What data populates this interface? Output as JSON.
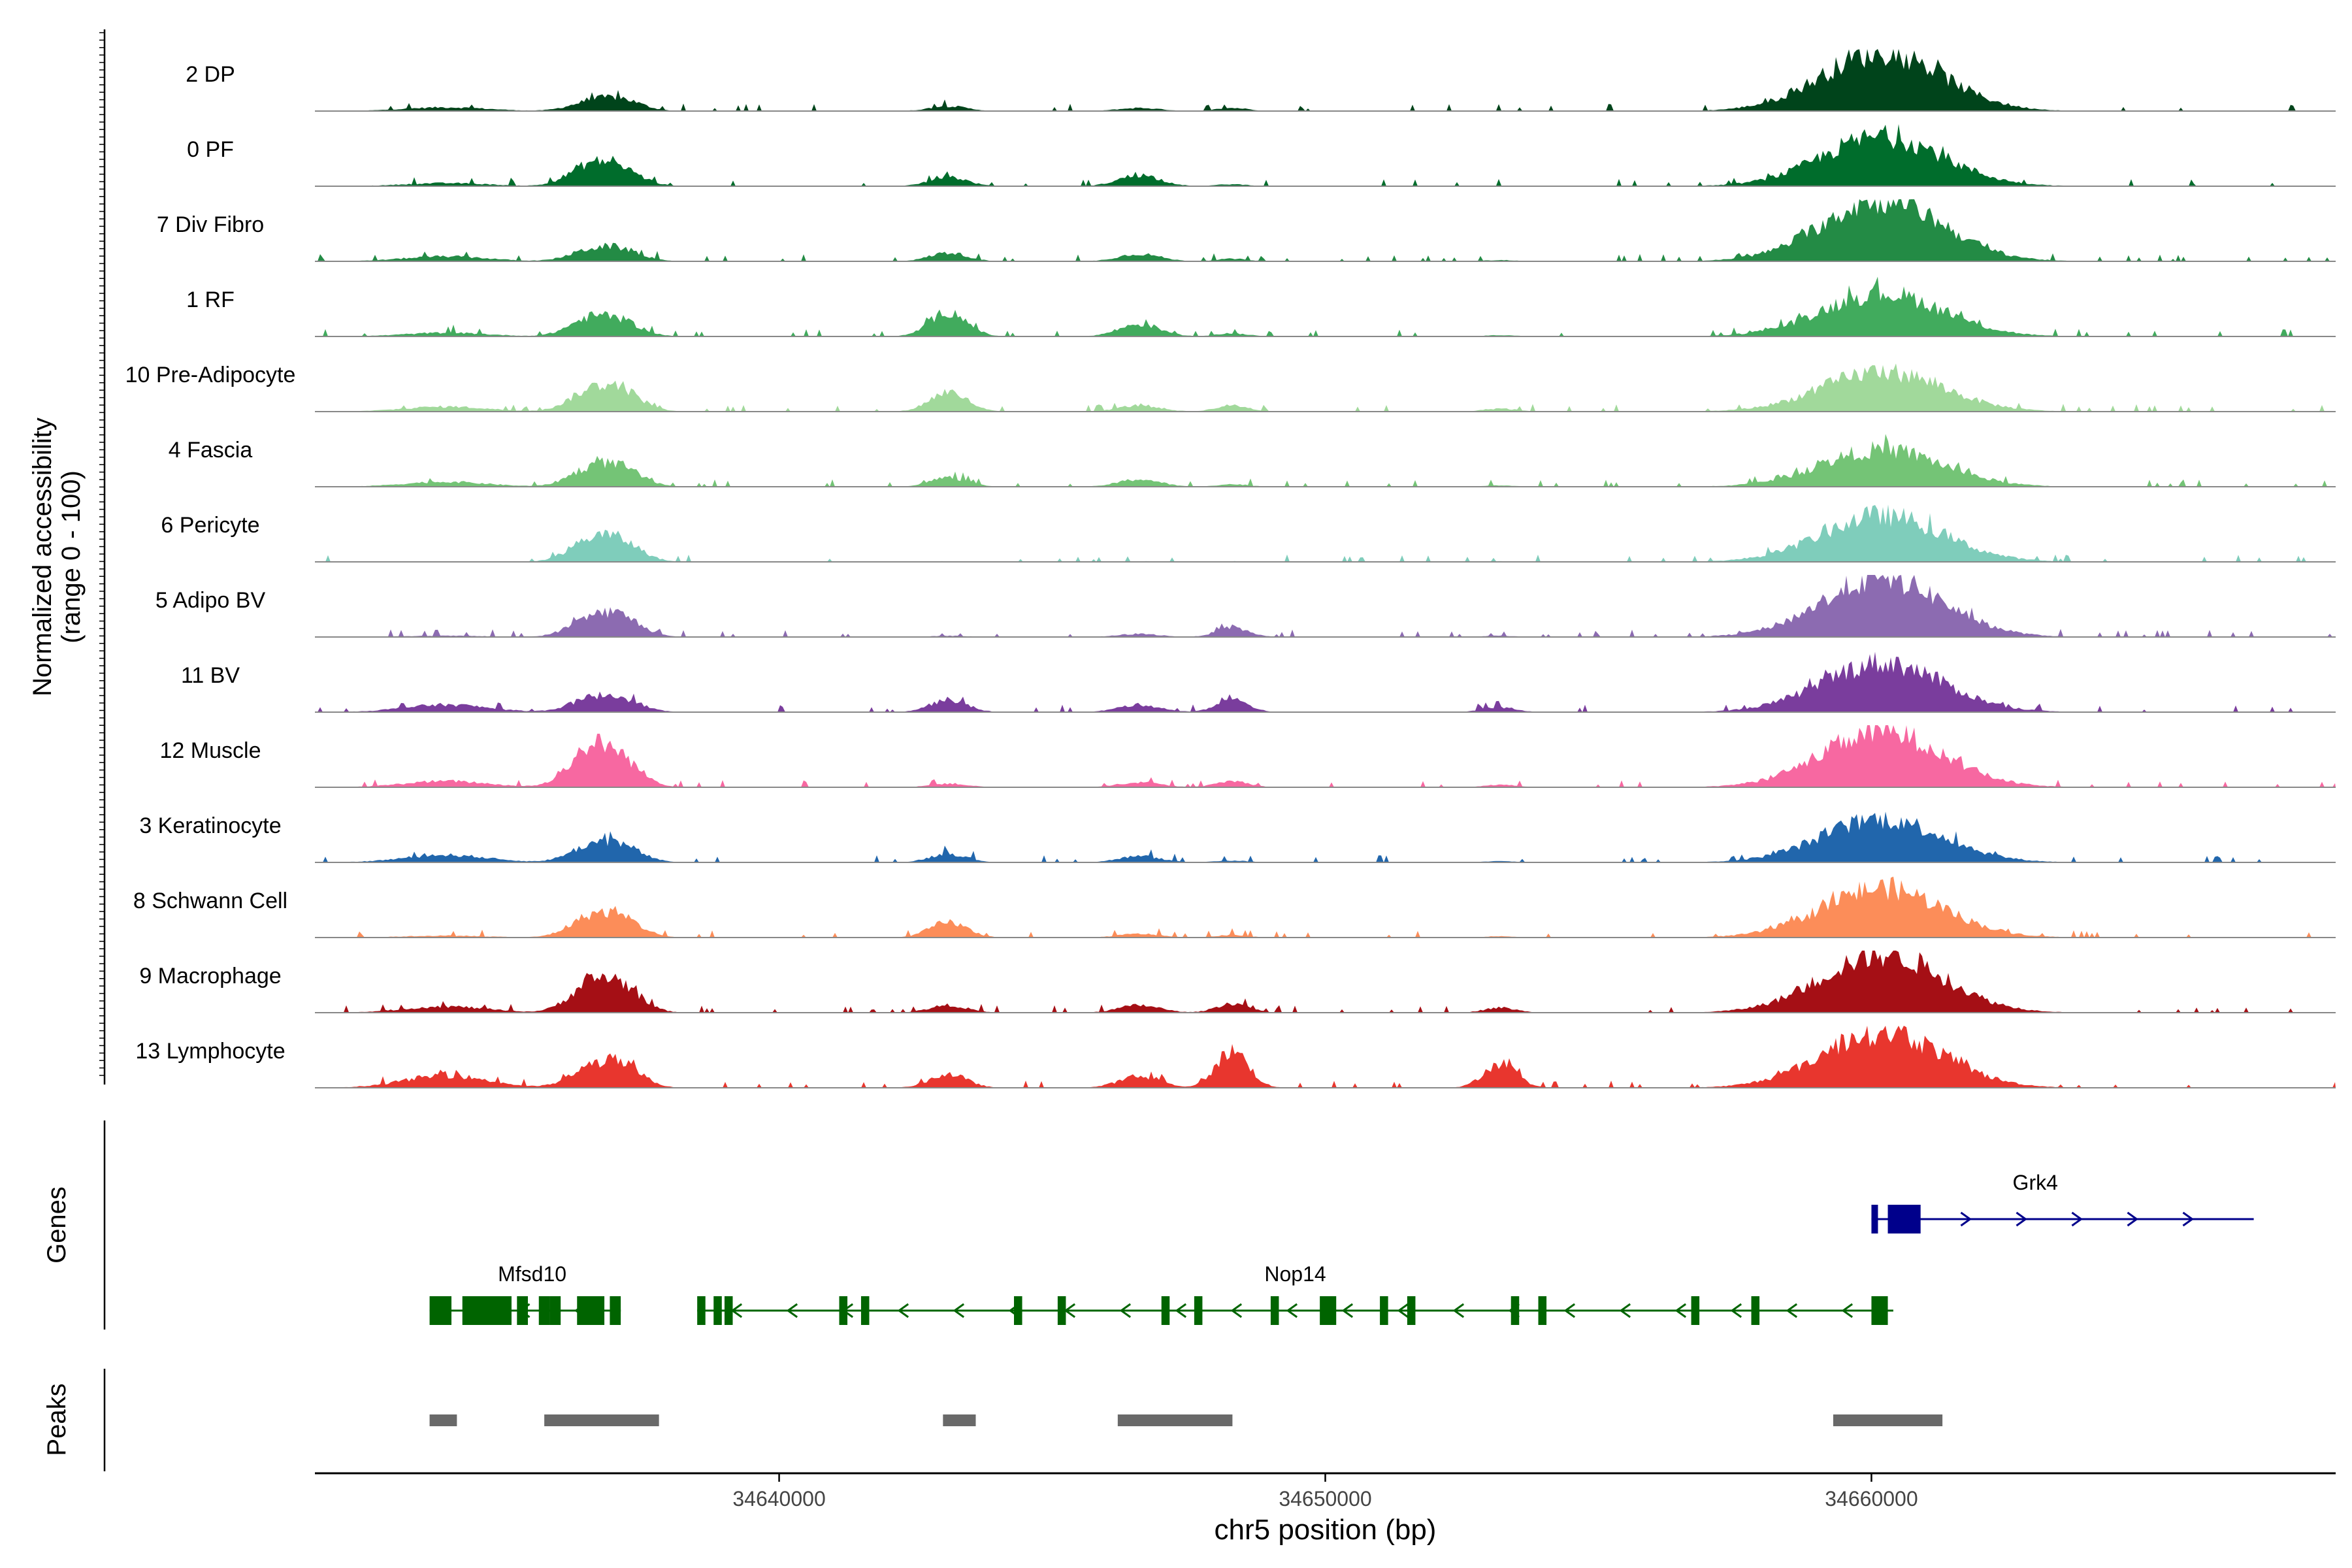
{
  "chart_data": {
    "type": "area",
    "description_tracks": "coverage tracks, normalized accessibility",
    "ylabel": [
      "Normalized accessibility",
      "(range 0 - 100)"
    ],
    "xlabel": "chr5 position (bp)",
    "xlim": [
      34631500,
      34668500
    ],
    "x_ticks": [
      34640000,
      34650000,
      34660000
    ],
    "x_tick_labels": [
      "34640000",
      "34650000",
      "34660000"
    ],
    "grid": false,
    "track_ylim": [
      0,
      100
    ],
    "peak_centers": [
      34633900,
      34636500,
      34637100,
      34643100,
      34646600,
      34648300,
      34653200,
      34660200
    ],
    "series": [
      {
        "name": "2 DP",
        "color": "#00441b",
        "values": [
          6,
          12,
          18,
          8,
          5,
          5,
          1,
          95
        ]
      },
      {
        "name": "0 PF",
        "color": "#006d2c",
        "values": [
          5,
          30,
          25,
          15,
          18,
          3,
          1,
          80
        ]
      },
      {
        "name": "7 Div Fibro",
        "color": "#238b45",
        "values": [
          8,
          15,
          18,
          14,
          12,
          4,
          2,
          100
        ]
      },
      {
        "name": "1 RF",
        "color": "#41ab5d",
        "values": [
          6,
          25,
          22,
          40,
          20,
          5,
          2,
          70
        ]
      },
      {
        "name": "10 Pre-Adipocyte",
        "color": "#a1d99b",
        "values": [
          8,
          28,
          32,
          32,
          10,
          10,
          5,
          65
        ]
      },
      {
        "name": "4 Fascia",
        "color": "#74c476",
        "values": [
          8,
          25,
          28,
          15,
          12,
          4,
          2,
          60
        ]
      },
      {
        "name": "6 Pericyte",
        "color": "#7fcdbb",
        "values": [
          1,
          30,
          30,
          1,
          1,
          1,
          1,
          75
        ]
      },
      {
        "name": "5 Adipo BV",
        "color": "#8c6bb1",
        "values": [
          2,
          25,
          30,
          2,
          5,
          15,
          2,
          95
        ]
      },
      {
        "name": "11 BV",
        "color": "#7a3d9d",
        "values": [
          12,
          18,
          20,
          20,
          12,
          20,
          8,
          80
        ]
      },
      {
        "name": "12 Muscle",
        "color": "#f768a1",
        "values": [
          10,
          55,
          40,
          6,
          8,
          10,
          4,
          90
        ]
      },
      {
        "name": "3 Keratinocyte",
        "color": "#2166ac",
        "values": [
          12,
          22,
          25,
          14,
          10,
          3,
          2,
          70
        ]
      },
      {
        "name": "8 Schwann Cell",
        "color": "#fc8d59",
        "values": [
          3,
          28,
          28,
          25,
          6,
          4,
          2,
          80
        ]
      },
      {
        "name": "9 Macrophage",
        "color": "#a50f15",
        "values": [
          10,
          38,
          40,
          12,
          12,
          15,
          8,
          95
        ]
      },
      {
        "name": "13 Lymphocyte",
        "color": "#e8362e",
        "values": [
          20,
          25,
          35,
          22,
          18,
          60,
          40,
          90
        ]
      }
    ],
    "genes": [
      {
        "name": "Mfsd10",
        "color": "#006400",
        "strand": "-",
        "start": 34633600,
        "end": 34637100,
        "exons": [
          [
            34633600,
            34634000
          ],
          [
            34634200,
            34635100
          ],
          [
            34635200,
            34635400
          ],
          [
            34635600,
            34635800
          ],
          [
            34635800,
            34636000
          ],
          [
            34636300,
            34636800
          ],
          [
            34636900,
            34637100
          ]
        ]
      },
      {
        "name": "Nop14",
        "color": "#006400",
        "strand": "-",
        "start": 34638500,
        "end": 34660400,
        "exons": [
          [
            34638500,
            34638650
          ],
          [
            34638800,
            34638950
          ],
          [
            34639000,
            34639150
          ],
          [
            34641100,
            34641250
          ],
          [
            34641500,
            34641650
          ],
          [
            34644300,
            34644450
          ],
          [
            34645100,
            34645250
          ],
          [
            34647000,
            34647150
          ],
          [
            34647600,
            34647750
          ],
          [
            34649000,
            34649150
          ],
          [
            34649900,
            34650200
          ],
          [
            34651000,
            34651150
          ],
          [
            34651500,
            34651650
          ],
          [
            34653400,
            34653550
          ],
          [
            34653900,
            34654050
          ],
          [
            34656700,
            34656850
          ],
          [
            34657800,
            34657950
          ],
          [
            34660000,
            34660300
          ]
        ]
      },
      {
        "name": "Grk4",
        "color": "#00008b",
        "strand": "+",
        "start": 34660000,
        "end": 34667000,
        "exons": [
          [
            34660000,
            34660100
          ],
          [
            34660300,
            34660900
          ]
        ]
      }
    ],
    "peaks": [
      [
        34633600,
        34634100
      ],
      [
        34635700,
        34637800
      ],
      [
        34643000,
        34643600
      ],
      [
        34646200,
        34648300
      ],
      [
        34659300,
        34661300
      ]
    ],
    "track_labels": [
      "Genes",
      "Peaks"
    ]
  }
}
